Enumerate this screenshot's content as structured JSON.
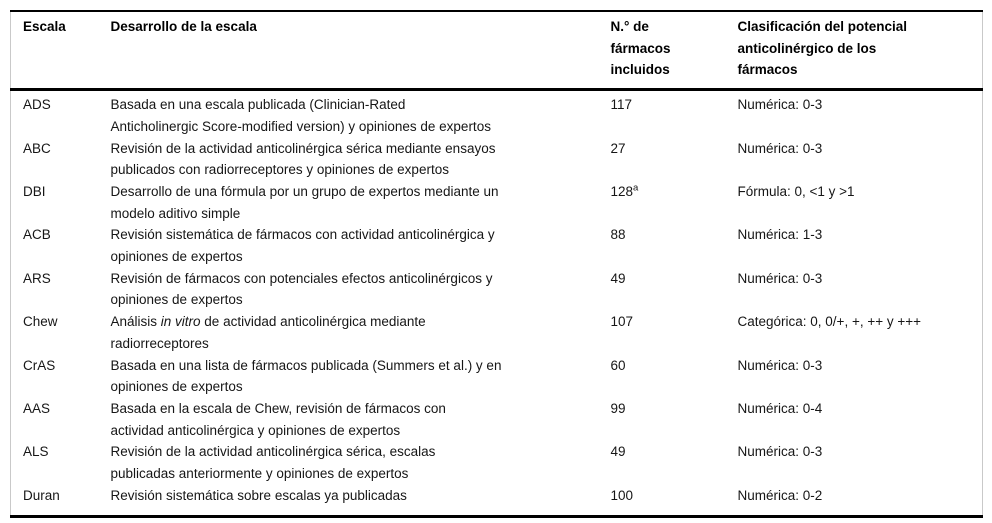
{
  "table": {
    "headers": {
      "escala": "Escala",
      "desarrollo": "Desarrollo de la escala",
      "n_farmacos": "N.° de\nfármacos\nincluidos",
      "clasificacion": "Clasificación del potencial\nanticolinérgico de los\nfármacos"
    },
    "rows": [
      {
        "escala": "ADS",
        "desarrollo_pre": "Basada en una escala publicada (Clinician-Rated\nAnticholinergic Score-modified version) y opiniones de expertos",
        "desarrollo_italic": "",
        "desarrollo_post": "",
        "n_farmacos": "117",
        "n_sup": "",
        "clasificacion": "Numérica: 0-3"
      },
      {
        "escala": "ABC",
        "desarrollo_pre": "Revisión de la actividad anticolinérgica sérica mediante ensayos\npublicados con radiorreceptores y opiniones de expertos",
        "desarrollo_italic": "",
        "desarrollo_post": "",
        "n_farmacos": "27",
        "n_sup": "",
        "clasificacion": "Numérica: 0-3"
      },
      {
        "escala": "DBI",
        "desarrollo_pre": "Desarrollo de una fórmula por un grupo de expertos mediante un\nmodelo aditivo simple",
        "desarrollo_italic": "",
        "desarrollo_post": "",
        "n_farmacos": "128",
        "n_sup": "a",
        "clasificacion": "Fórmula: 0, <1 y >1"
      },
      {
        "escala": "ACB",
        "desarrollo_pre": "Revisión sistemática de fármacos con actividad anticolinérgica y\nopiniones de expertos",
        "desarrollo_italic": "",
        "desarrollo_post": "",
        "n_farmacos": "88",
        "n_sup": "",
        "clasificacion": "Numérica: 1-3"
      },
      {
        "escala": "ARS",
        "desarrollo_pre": "Revisión de fármacos con potenciales efectos anticolinérgicos y\nopiniones de expertos",
        "desarrollo_italic": "",
        "desarrollo_post": "",
        "n_farmacos": "49",
        "n_sup": "",
        "clasificacion": "Numérica: 0-3"
      },
      {
        "escala": "Chew",
        "desarrollo_pre": "Análisis ",
        "desarrollo_italic": "in vitro",
        "desarrollo_post": " de actividad anticolinérgica mediante\nradiorreceptores",
        "n_farmacos": "107",
        "n_sup": "",
        "clasificacion": "Categórica: 0, 0/+, +, ++ y +++"
      },
      {
        "escala": "CrAS",
        "desarrollo_pre": "Basada en una lista de fármacos publicada (Summers et al.) y en\nopiniones de expertos",
        "desarrollo_italic": "",
        "desarrollo_post": "",
        "n_farmacos": "60",
        "n_sup": "",
        "clasificacion": "Numérica: 0-3"
      },
      {
        "escala": "AAS",
        "desarrollo_pre": "Basada en la escala de Chew, revisión de fármacos con\nactividad anticolinérgica y opiniones de expertos",
        "desarrollo_italic": "",
        "desarrollo_post": "",
        "n_farmacos": "99",
        "n_sup": "",
        "clasificacion": "Numérica: 0-4"
      },
      {
        "escala": "ALS",
        "desarrollo_pre": "Revisión de la actividad anticolinérgica sérica, escalas\npublicadas anteriormente y opiniones de expertos",
        "desarrollo_italic": "",
        "desarrollo_post": "",
        "n_farmacos": "49",
        "n_sup": "",
        "clasificacion": "Numérica: 0-3"
      },
      {
        "escala": "Duran",
        "desarrollo_pre": "Revisión sistemática sobre escalas ya publicadas",
        "desarrollo_italic": "",
        "desarrollo_post": "",
        "n_farmacos": "100",
        "n_sup": "",
        "clasificacion": "Numérica: 0-2"
      }
    ]
  }
}
